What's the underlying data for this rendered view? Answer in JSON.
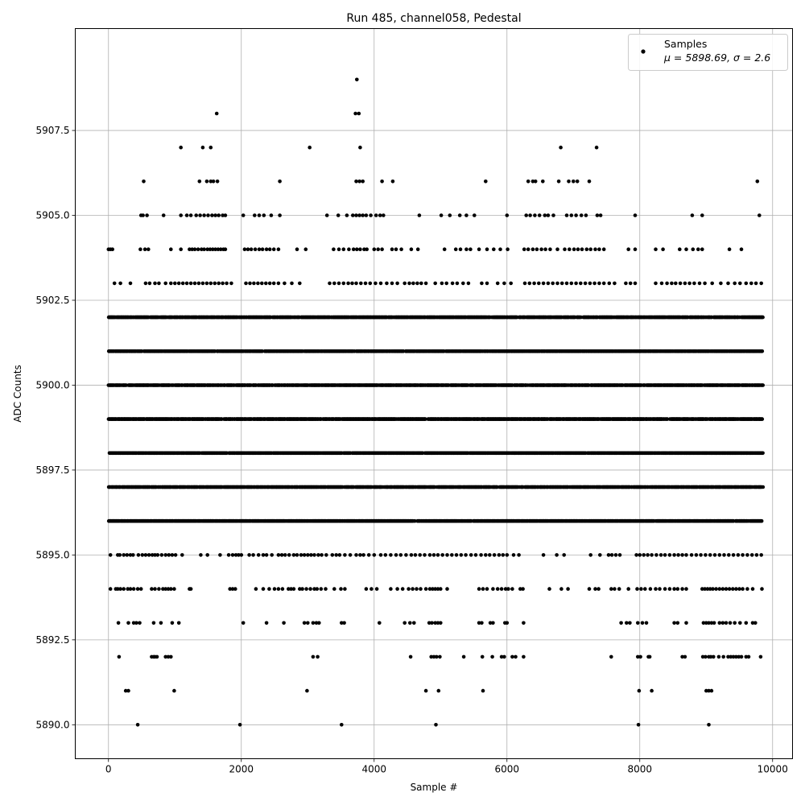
{
  "chart_data": {
    "type": "scatter",
    "title": "Run 485, channel058, Pedestal",
    "xlabel": "Sample #",
    "ylabel": "ADC Counts",
    "xlim": [
      -500,
      10300
    ],
    "ylim": [
      5889.0,
      5910.5
    ],
    "x_ticks": [
      0,
      2000,
      4000,
      6000,
      8000,
      10000
    ],
    "x_tick_labels": [
      "0",
      "2000",
      "4000",
      "6000",
      "8000",
      "10000"
    ],
    "y_ticks": [
      5890.0,
      5892.5,
      5895.0,
      5897.5,
      5900.0,
      5902.5,
      5905.0,
      5907.5
    ],
    "y_tick_labels": [
      "5890.0",
      "5892.5",
      "5895.0",
      "5897.5",
      "5900.0",
      "5902.5",
      "5905.0",
      "5907.5"
    ],
    "grid": true,
    "legend_position": "top-right",
    "series": [
      {
        "name": "Samples",
        "stat_label": "μ = 5898.69, σ = 2.6",
        "color": "#000000",
        "n_samples": 9850,
        "value_levels": [
          5890,
          5891,
          5892,
          5893,
          5894,
          5895,
          5896,
          5897,
          5898,
          5899,
          5900,
          5901,
          5902,
          5903,
          5904,
          5905,
          5906,
          5907,
          5908,
          5909
        ],
        "dense_levels": [
          5896,
          5897,
          5898,
          5899,
          5900,
          5901,
          5902
        ],
        "sparse_points": {
          "5890": [
            440,
            1980,
            3510,
            4930,
            7980,
            9040
          ],
          "5891": [
            260,
            300,
            990,
            2990,
            4780,
            4970,
            5640,
            7990,
            8180,
            9000,
            9040,
            9080
          ],
          "5892": [
            160,
            650,
            680,
            700,
            730,
            860,
            900,
            940,
            3080,
            3150,
            4550,
            4860,
            4900,
            4940,
            4990,
            5350,
            5630,
            5780,
            5920,
            5960,
            6080,
            6130,
            6250,
            7570,
            7970,
            8010,
            8130,
            8150,
            8640,
            8680,
            8950,
            8990,
            9040,
            9070,
            9110,
            9190,
            9260,
            9330,
            9370,
            9410,
            9450,
            9490,
            9530,
            9600,
            9640,
            9820
          ],
          "5893": [
            150,
            300,
            380,
            420,
            470,
            680,
            790,
            960,
            1060,
            2030,
            2380,
            2640,
            2950,
            3000,
            3080,
            3130,
            3170,
            3510,
            3550,
            4080,
            4460,
            4540,
            4600,
            4830,
            4870,
            4920,
            4960,
            5000,
            5580,
            5620,
            5750,
            5790,
            5970,
            6000,
            6250,
            7720,
            7800,
            7850,
            7970,
            8040,
            8100,
            8520,
            8570,
            8700,
            8960,
            9000,
            9040,
            9080,
            9120,
            9200,
            9250,
            9300,
            9360,
            9430,
            9510,
            9600,
            9700,
            9740
          ],
          "5894": [
            30,
            110,
            140,
            180,
            230,
            290,
            330,
            380,
            440,
            490,
            650,
            700,
            760,
            820,
            860,
            900,
            940,
            990,
            1220,
            1240,
            1830,
            1870,
            1910,
            2220,
            2330,
            2420,
            2500,
            2560,
            2620,
            2710,
            2750,
            2790,
            2880,
            2920,
            2980,
            3040,
            3100,
            3140,
            3200,
            3270,
            3400,
            3500,
            3560,
            3880,
            3960,
            4040,
            4250,
            4350,
            4430,
            4520,
            4580,
            4640,
            4700,
            4780,
            4840,
            4880,
            4920,
            4960,
            5000,
            5100,
            5580,
            5640,
            5700,
            5790,
            5860,
            5920,
            5980,
            6020,
            6080,
            6200,
            6240,
            6640,
            6820,
            6920,
            7240,
            7330,
            7380,
            7570,
            7620,
            7690,
            7830,
            7960,
            8020,
            8080,
            8160,
            8240,
            8300,
            8380,
            8450,
            8520,
            8570,
            8640,
            8700,
            8940,
            8980,
            9020,
            9060,
            9100,
            9150,
            9200,
            9250,
            9300,
            9350,
            9400,
            9450,
            9500,
            9550,
            9620,
            9700,
            9840
          ],
          "5895": [
            30,
            140,
            170,
            230,
            280,
            330,
            370,
            450,
            510,
            560,
            610,
            660,
            700,
            740,
            800,
            860,
            910,
            960,
            1010,
            1110,
            1390,
            1490,
            1680,
            1810,
            1870,
            1920,
            1960,
            2000,
            2120,
            2180,
            2260,
            2330,
            2380,
            2460,
            2560,
            2610,
            2660,
            2720,
            2790,
            2840,
            2900,
            2950,
            3000,
            3050,
            3100,
            3160,
            3210,
            3280,
            3370,
            3430,
            3480,
            3560,
            3640,
            3730,
            3790,
            3840,
            3920,
            4000,
            4100,
            4170,
            4250,
            4330,
            4400,
            4480,
            4560,
            4620,
            4690,
            4760,
            4840,
            4900,
            4960,
            5030,
            5100,
            5170,
            5240,
            5310,
            5380,
            5460,
            5530,
            5610,
            5680,
            5740,
            5810,
            5880,
            5940,
            6000,
            6100,
            6180,
            6550,
            6750,
            6860,
            7260,
            7400,
            7530,
            7580,
            7640,
            7700,
            7950,
            8000,
            8060,
            8120,
            8180,
            8250,
            8320,
            8380,
            8450,
            8520,
            8580,
            8640,
            8700,
            8780,
            8850,
            8920,
            8990,
            9060,
            9130,
            9200,
            9270,
            9340,
            9410,
            9480,
            9550,
            9620,
            9690,
            9760,
            9830
          ],
          "5903": [
            90,
            180,
            330,
            560,
            620,
            700,
            760,
            860,
            940,
            1000,
            1060,
            1120,
            1180,
            1240,
            1300,
            1360,
            1420,
            1480,
            1540,
            1600,
            1660,
            1720,
            1780,
            1850,
            2070,
            2130,
            2190,
            2250,
            2310,
            2370,
            2430,
            2490,
            2560,
            2650,
            2760,
            2880,
            3330,
            3400,
            3470,
            3540,
            3610,
            3670,
            3730,
            3800,
            3870,
            3940,
            4020,
            4100,
            4190,
            4270,
            4350,
            4460,
            4530,
            4590,
            4650,
            4710,
            4780,
            4920,
            5020,
            5090,
            5180,
            5250,
            5340,
            5420,
            5620,
            5700,
            5860,
            5960,
            6060,
            6270,
            6340,
            6410,
            6480,
            6550,
            6620,
            6690,
            6760,
            6830,
            6900,
            6970,
            7040,
            7110,
            7180,
            7250,
            7320,
            7390,
            7460,
            7540,
            7620,
            7790,
            7860,
            7930,
            8240,
            8330,
            8410,
            8480,
            8540,
            8610,
            8680,
            8750,
            8820,
            8900,
            8980,
            9090,
            9220,
            9330,
            9430,
            9510,
            9600,
            9680,
            9750,
            9830
          ],
          "5904": [
            0,
            30,
            60,
            480,
            550,
            600,
            940,
            1090,
            1220,
            1260,
            1300,
            1350,
            1400,
            1440,
            1490,
            1530,
            1570,
            1610,
            1650,
            1690,
            1730,
            1760,
            2050,
            2100,
            2150,
            2210,
            2270,
            2320,
            2380,
            2430,
            2490,
            2560,
            2840,
            2970,
            3390,
            3470,
            3540,
            3620,
            3690,
            3740,
            3790,
            3850,
            3890,
            4000,
            4060,
            4120,
            4270,
            4330,
            4410,
            4560,
            4660,
            5060,
            5230,
            5300,
            5390,
            5450,
            5580,
            5700,
            5800,
            5900,
            6010,
            6260,
            6320,
            6390,
            6450,
            6520,
            6580,
            6650,
            6760,
            6870,
            6940,
            7010,
            7070,
            7130,
            7200,
            7260,
            7330,
            7390,
            7460,
            7830,
            7930,
            8240,
            8350,
            8600,
            8700,
            8800,
            8880,
            8940,
            9350,
            9530
          ],
          "5905": [
            490,
            520,
            580,
            830,
            1090,
            1180,
            1240,
            1320,
            1380,
            1440,
            1500,
            1560,
            1610,
            1660,
            1720,
            1760,
            2030,
            2200,
            2270,
            2340,
            2450,
            2580,
            3290,
            3460,
            3590,
            3680,
            3730,
            3780,
            3830,
            3880,
            3950,
            4030,
            4090,
            4140,
            4680,
            5010,
            5140,
            5290,
            5390,
            5510,
            6000,
            6290,
            6350,
            6420,
            6490,
            6570,
            6620,
            6700,
            6900,
            6970,
            7040,
            7120,
            7190,
            7360,
            7410,
            7930,
            8790,
            8940,
            9800
          ],
          "5906": [
            530,
            1370,
            1480,
            1540,
            1580,
            1640,
            2580,
            3730,
            3780,
            3830,
            4120,
            4280,
            5680,
            6320,
            6390,
            6430,
            6540,
            6780,
            6930,
            7000,
            7060,
            7240,
            9770
          ],
          "5907": [
            1090,
            1420,
            1540,
            3030,
            3790,
            6810,
            7350
          ],
          "5908": [
            1630,
            3720,
            3770
          ],
          "5909": [
            3740
          ]
        }
      }
    ]
  }
}
